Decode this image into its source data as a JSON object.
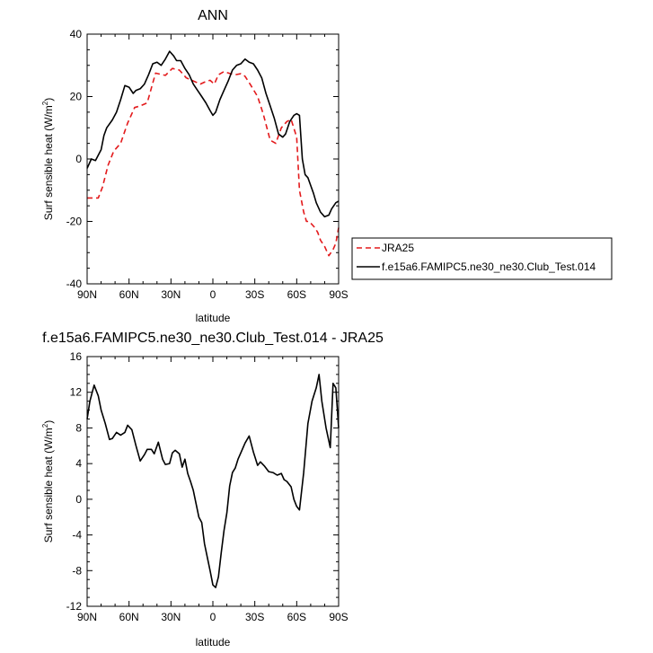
{
  "chart_data": [
    {
      "type": "line",
      "title": "ANN",
      "xlabel": "latitude",
      "ylabel": "Surf sensible heat (W/m",
      "ylabel_sup": "2",
      "ylabel_close": ")",
      "xlim": [
        90,
        -90
      ],
      "ylim": [
        -40,
        40
      ],
      "x_ticks": [
        90,
        60,
        30,
        0,
        -30,
        -60,
        -90
      ],
      "x_tick_labels": [
        "90N",
        "60N",
        "30N",
        "0",
        "30S",
        "60S",
        "90S"
      ],
      "y_ticks": [
        -40,
        -20,
        0,
        20,
        40
      ],
      "y_tick_labels": [
        "-40",
        "-20",
        "0",
        "20",
        "40"
      ],
      "legend": "bottom-right outside",
      "series": [
        {
          "name": "JRA25",
          "color": "#e31a1c",
          "dash": "dashed",
          "x": [
            90,
            86,
            82,
            79,
            75,
            71,
            66,
            61,
            56,
            52,
            47,
            41,
            38,
            34,
            29,
            24,
            19,
            14,
            9,
            5,
            2,
            -1,
            -4,
            -8,
            -12,
            -16,
            -20,
            -23,
            -27,
            -32,
            -36,
            -41,
            -45,
            -49,
            -53,
            -56,
            -60,
            -62,
            -65,
            -67,
            -69,
            -71,
            -73,
            -75,
            -77,
            -80,
            -83,
            -86,
            -88,
            -90
          ],
          "values": [
            -12.5,
            -12.5,
            -12.5,
            -9,
            -2,
            2.5,
            5,
            11.5,
            16.5,
            17,
            18,
            27.5,
            27.2,
            26.8,
            29,
            28.5,
            26,
            25,
            24,
            24.8,
            25.2,
            24,
            27,
            28,
            27.4,
            27,
            27.3,
            26.5,
            23.7,
            20,
            14.5,
            6,
            5,
            10,
            12,
            12.7,
            7,
            -10,
            -17,
            -20,
            -20,
            -21,
            -22,
            -23.5,
            -26,
            -28,
            -31,
            -29,
            -27,
            -22
          ]
        },
        {
          "name": "f.e15a6.FAMIPC5.ne30_ne30.Club_Test.014",
          "color": "#000000",
          "dash": "solid",
          "x": [
            90,
            87,
            84,
            80,
            78,
            76,
            72,
            69,
            66,
            63,
            60,
            57,
            55,
            52,
            49,
            46,
            43,
            40,
            37,
            34,
            31,
            28,
            26,
            23,
            20,
            17,
            14,
            11,
            8,
            5,
            2,
            0,
            -2,
            -5,
            -8,
            -11,
            -14,
            -17,
            -20,
            -23,
            -26,
            -29,
            -32,
            -35,
            -38,
            -41,
            -44,
            -47,
            -50,
            -52,
            -55,
            -58,
            -60,
            -62,
            -64,
            -66,
            -68,
            -70,
            -72,
            -74,
            -77,
            -80,
            -83,
            -85,
            -88,
            -90
          ],
          "values": [
            -3,
            0,
            -0.5,
            3,
            7.5,
            10,
            12.5,
            15,
            19,
            23.5,
            23,
            21,
            22,
            22.5,
            24,
            27,
            30.5,
            31,
            30,
            32,
            34.5,
            33,
            31.5,
            31.5,
            29,
            27,
            24,
            22,
            20,
            18,
            15.5,
            14,
            15,
            19,
            22,
            25,
            28.5,
            30,
            30.5,
            32,
            31,
            30.5,
            28.5,
            26,
            21,
            17,
            13,
            8,
            7,
            8,
            12,
            14,
            14.5,
            14,
            0,
            -5,
            -6,
            -8.5,
            -11,
            -14,
            -17,
            -18.5,
            -18,
            -16,
            -14,
            -13.5
          ]
        }
      ]
    },
    {
      "type": "line",
      "title": "f.e15a6.FAMIPC5.ne30_ne30.Club_Test.014 - JRA25",
      "xlabel": "latitude",
      "ylabel": "Surf sensible heat (W/m",
      "ylabel_sup": "2",
      "ylabel_close": ")",
      "xlim": [
        90,
        -90
      ],
      "ylim": [
        -12,
        16
      ],
      "x_ticks": [
        90,
        60,
        30,
        0,
        -30,
        -60,
        -90
      ],
      "x_tick_labels": [
        "90N",
        "60N",
        "30N",
        "0",
        "30S",
        "60S",
        "90S"
      ],
      "y_ticks": [
        -12,
        -8,
        -4,
        0,
        4,
        8,
        12,
        16
      ],
      "y_tick_labels": [
        "-12",
        "-8",
        "-4",
        "0",
        "4",
        "8",
        "12",
        "16"
      ],
      "series": [
        {
          "color": "#000000",
          "dash": "solid",
          "x": [
            90,
            88,
            85,
            82,
            80,
            77,
            74,
            72,
            69,
            66,
            63,
            61,
            58,
            55,
            52,
            49,
            47,
            44,
            42,
            39,
            36,
            34,
            31,
            29,
            27,
            24,
            22,
            20,
            18,
            16,
            14,
            12,
            10,
            8,
            6,
            4,
            2,
            0,
            -2,
            -4,
            -6,
            -8,
            -10,
            -12,
            -14,
            -16,
            -18,
            -20,
            -23,
            -26,
            -29,
            -32,
            -34,
            -37,
            -40,
            -43,
            -46,
            -49,
            -51,
            -53,
            -56,
            -58,
            -60,
            -62,
            -65,
            -68,
            -71,
            -74,
            -76,
            -78,
            -81,
            -84,
            -86,
            -88,
            -90
          ],
          "values": [
            9,
            11,
            12.8,
            11.6,
            10,
            8.5,
            6.7,
            6.8,
            7.5,
            7.2,
            7.5,
            8.3,
            7.8,
            6,
            4.3,
            5,
            5.6,
            5.6,
            5.1,
            6.4,
            4.5,
            3.9,
            4,
            5.2,
            5.5,
            5.1,
            3.6,
            4.5,
            2.9,
            2,
            1,
            -0.5,
            -2,
            -2.6,
            -5,
            -6.5,
            -8,
            -9.6,
            -9.9,
            -8.7,
            -6,
            -3.5,
            -1.5,
            1.5,
            3,
            3.5,
            4.5,
            5.2,
            6.3,
            7.1,
            5.3,
            3.8,
            4.2,
            3.7,
            3.1,
            3,
            2.7,
            2.9,
            2.2,
            2,
            1.4,
            0,
            -0.8,
            -1.2,
            3,
            8.5,
            11,
            12.5,
            14,
            11,
            8,
            5.8,
            13,
            12.5,
            8
          ]
        }
      ]
    }
  ]
}
